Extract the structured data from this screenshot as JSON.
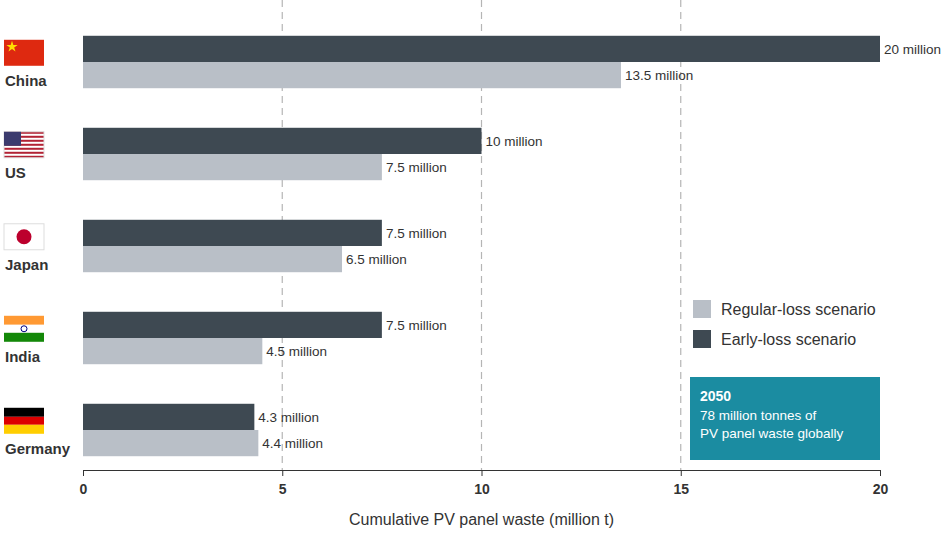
{
  "chart_data": {
    "type": "bar",
    "orientation": "horizontal",
    "categories": [
      "China",
      "US",
      "Japan",
      "India",
      "Germany"
    ],
    "series": [
      {
        "name": "Regular-loss scenario",
        "color": "#b9bfc7",
        "values": [
          13.5,
          7.5,
          6.5,
          4.5,
          4.4
        ],
        "value_labels": [
          "13.5 million",
          "7.5 million",
          "6.5 million",
          "4.5 million",
          "4.4 million"
        ]
      },
      {
        "name": "Early-loss scenario",
        "color": "#3e4952",
        "values": [
          20,
          10,
          7.5,
          7.5,
          4.3
        ],
        "value_labels": [
          "20 million",
          "10 million",
          "7.5 million",
          "7.5 million",
          "4.3 million"
        ]
      }
    ],
    "x_label": "Cumulative PV panel waste (million t)",
    "xlim": [
      0,
      20
    ],
    "xticks": [
      0,
      5,
      10,
      15,
      20
    ],
    "grid": true,
    "data_labels": true,
    "legend": "lower right",
    "annotation": {
      "title": "2050",
      "lines": [
        "78 million tonnes of",
        "PV panel waste globally"
      ],
      "color": "#1b8ca1"
    }
  }
}
